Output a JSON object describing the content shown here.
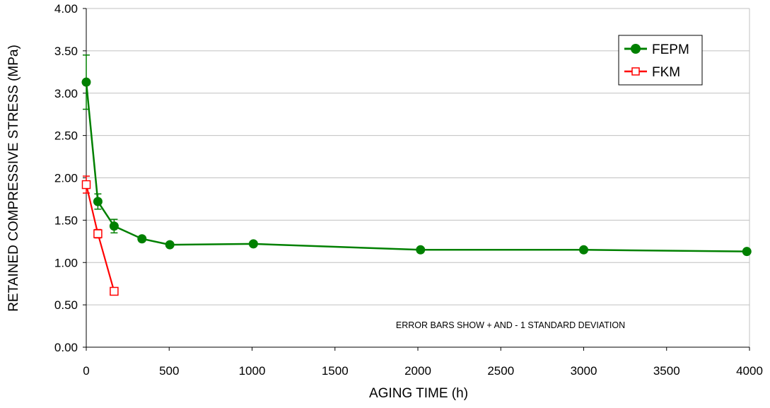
{
  "chart_data": {
    "type": "line",
    "title": "",
    "xlabel": "AGING TIME (h)",
    "ylabel": "RETAINED COMPRESSIVE STRESS (MPa)",
    "xlim": [
      0,
      4000
    ],
    "ylim": [
      0,
      4
    ],
    "x_ticks": [
      0,
      500,
      1000,
      1500,
      2000,
      2500,
      3000,
      3500,
      4000
    ],
    "y_ticks": [
      "0.00",
      "0.50",
      "1.00",
      "1.50",
      "2.00",
      "2.50",
      "3.00",
      "3.50",
      "4.00"
    ],
    "grid": "horizontal",
    "legend_position": "top-right",
    "annotation": "ERROR BARS SHOW + AND - 1 STANDARD DEVIATION",
    "series": [
      {
        "name": "FEPM",
        "color": "#008000",
        "marker": "filled-circle",
        "x": [
          0,
          70,
          168,
          336,
          504,
          1008,
          2016,
          3000,
          3984
        ],
        "y": [
          3.13,
          1.72,
          1.43,
          1.28,
          1.21,
          1.22,
          1.15,
          1.15,
          1.13
        ],
        "error": [
          0.32,
          0.09,
          0.08,
          0,
          0,
          0,
          0,
          0,
          0
        ]
      },
      {
        "name": "FKM",
        "color": "#ff0000",
        "marker": "open-square",
        "x": [
          0,
          70,
          168
        ],
        "y": [
          1.92,
          1.34,
          0.66
        ],
        "error": [
          0.1,
          0.05,
          0.03
        ]
      }
    ]
  }
}
